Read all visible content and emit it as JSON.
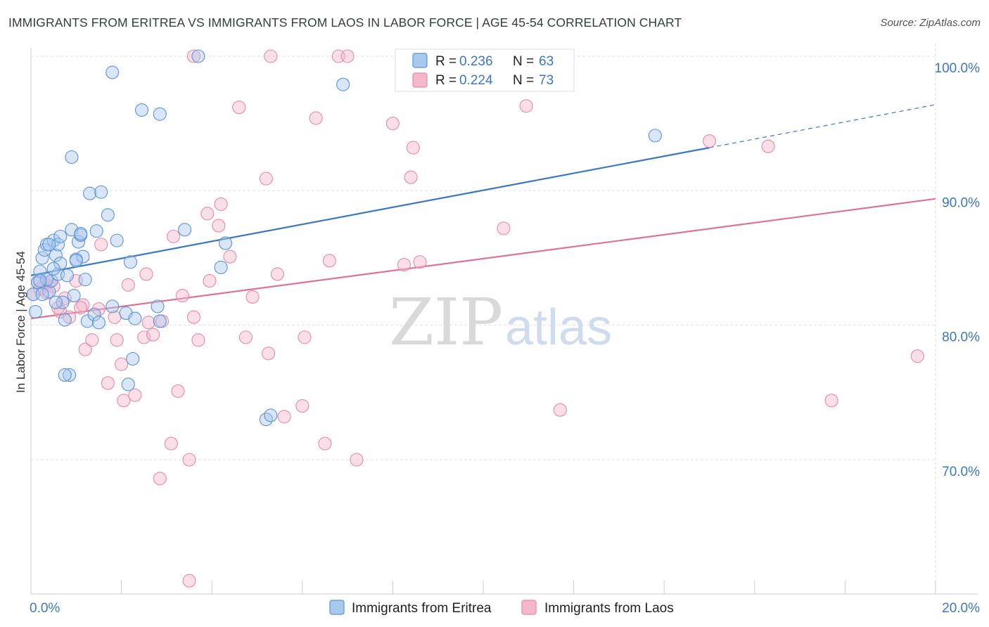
{
  "title": "IMMIGRANTS FROM ERITREA VS IMMIGRANTS FROM LAOS IN LABOR FORCE | AGE 45-54 CORRELATION CHART",
  "source": "Source: ZipAtlas.com",
  "watermark": {
    "zip": "ZIP",
    "atlas": "atlas"
  },
  "colors": {
    "eritrea_fill": "#a8c8f0",
    "eritrea_stroke": "#5b93d8",
    "eritrea_line": "#3b78c4",
    "laos_fill": "#f5b8cb",
    "laos_stroke": "#e88aa8",
    "laos_line": "#e0729a",
    "grid": "#e2e2e2",
    "axis_text": "#3b78c4"
  },
  "legend_top": [
    {
      "r_label": "R = ",
      "r_value": "0.236",
      "n_label": "N = ",
      "n_value": "63",
      "series": "eritrea"
    },
    {
      "r_label": "R = ",
      "r_value": "0.224",
      "n_label": "N = ",
      "n_value": "73",
      "series": "laos"
    }
  ],
  "chart_data": {
    "type": "scatter",
    "title": "IMMIGRANTS FROM ERITREA VS IMMIGRANTS FROM LAOS IN LABOR FORCE | AGE 45-54 CORRELATION CHART",
    "xlabel": "",
    "ylabel": "In Labor Force | Age 45-54",
    "xlim": [
      0,
      20
    ],
    "ylim": [
      60,
      102
    ],
    "x_tick_labels": [
      {
        "value": 0,
        "label": "0.0%"
      },
      {
        "value": 20,
        "label": "20.0%"
      }
    ],
    "y_tick_labels": [
      {
        "value": 100,
        "label": "100.0%"
      },
      {
        "value": 90,
        "label": "90.0%"
      },
      {
        "value": 80,
        "label": "80.0%"
      },
      {
        "value": 70,
        "label": "70.0%"
      }
    ],
    "x_minor_ticks": [
      0,
      2,
      4,
      6,
      8,
      10,
      12,
      14,
      16,
      18,
      20
    ],
    "grid": true,
    "legend_position": "bottom-center",
    "series": [
      {
        "name": "Immigrants from Eritrea",
        "key": "eritrea",
        "r": 0.236,
        "n": 63,
        "trend": {
          "x0": 0,
          "y0": 83.7,
          "x1": 15,
          "y1": 93.2,
          "dash_to_x": 20,
          "dash_to_y": 96.4
        },
        "points": [
          [
            0.05,
            82.3
          ],
          [
            0.1,
            81.0
          ],
          [
            0.15,
            83.2
          ],
          [
            0.2,
            84.0
          ],
          [
            0.25,
            85.0
          ],
          [
            0.3,
            85.6
          ],
          [
            0.35,
            86.0
          ],
          [
            0.4,
            82.5
          ],
          [
            0.45,
            83.3
          ],
          [
            0.5,
            86.3
          ],
          [
            0.55,
            85.2
          ],
          [
            0.6,
            83.8
          ],
          [
            0.65,
            84.6
          ],
          [
            0.7,
            81.7
          ],
          [
            0.75,
            80.4
          ],
          [
            0.8,
            83.7
          ],
          [
            0.85,
            76.3
          ],
          [
            0.9,
            87.1
          ],
          [
            0.95,
            82.2
          ],
          [
            1.0,
            84.9
          ],
          [
            1.05,
            86.2
          ],
          [
            1.1,
            86.7
          ],
          [
            1.15,
            85.1
          ],
          [
            1.2,
            83.4
          ],
          [
            1.25,
            80.3
          ],
          [
            1.3,
            89.8
          ],
          [
            1.4,
            80.8
          ],
          [
            1.45,
            87.0
          ],
          [
            1.5,
            80.2
          ],
          [
            1.55,
            89.9
          ],
          [
            1.7,
            88.2
          ],
          [
            1.8,
            81.4
          ],
          [
            1.9,
            86.3
          ],
          [
            2.1,
            80.9
          ],
          [
            2.15,
            75.6
          ],
          [
            2.2,
            84.7
          ],
          [
            2.25,
            77.5
          ],
          [
            2.3,
            80.5
          ],
          [
            2.45,
            96.0
          ],
          [
            2.8,
            81.4
          ],
          [
            2.85,
            80.3
          ],
          [
            3.4,
            87.1
          ],
          [
            3.7,
            100.0
          ],
          [
            4.3,
            86.1
          ],
          [
            4.2,
            84.3
          ],
          [
            5.2,
            73.0
          ],
          [
            5.3,
            73.3
          ],
          [
            1.8,
            98.8
          ],
          [
            0.9,
            92.5
          ],
          [
            2.85,
            95.7
          ],
          [
            6.9,
            97.9
          ],
          [
            13.8,
            94.1
          ],
          [
            0.6,
            86.0
          ],
          [
            0.65,
            86.6
          ],
          [
            0.35,
            83.4
          ],
          [
            0.2,
            83.3
          ],
          [
            0.25,
            82.3
          ],
          [
            0.5,
            84.2
          ],
          [
            0.75,
            76.3
          ],
          [
            1.1,
            86.8
          ],
          [
            0.4,
            86.0
          ],
          [
            0.55,
            81.7
          ],
          [
            1.0,
            84.8
          ]
        ]
      },
      {
        "name": "Immigrants from Laos",
        "key": "laos",
        "r": 0.224,
        "n": 73,
        "trend": {
          "x0": 0,
          "y0": 80.5,
          "x1": 20,
          "y1": 89.4
        },
        "points": [
          [
            0.05,
            82.3
          ],
          [
            0.2,
            82.7
          ],
          [
            0.3,
            83.1
          ],
          [
            0.4,
            83.2
          ],
          [
            0.5,
            82.9
          ],
          [
            0.65,
            81.0
          ],
          [
            0.75,
            82.0
          ],
          [
            0.85,
            80.6
          ],
          [
            1.0,
            83.3
          ],
          [
            1.15,
            81.5
          ],
          [
            1.2,
            78.2
          ],
          [
            1.35,
            78.9
          ],
          [
            1.5,
            81.2
          ],
          [
            1.55,
            86.0
          ],
          [
            1.7,
            75.7
          ],
          [
            1.85,
            80.6
          ],
          [
            1.9,
            78.9
          ],
          [
            2.0,
            77.1
          ],
          [
            2.05,
            74.4
          ],
          [
            2.15,
            83.0
          ],
          [
            2.3,
            74.8
          ],
          [
            2.5,
            79.1
          ],
          [
            2.55,
            83.8
          ],
          [
            2.6,
            80.2
          ],
          [
            2.7,
            79.3
          ],
          [
            2.9,
            80.3
          ],
          [
            2.85,
            68.6
          ],
          [
            3.1,
            71.2
          ],
          [
            3.15,
            86.6
          ],
          [
            3.25,
            75.1
          ],
          [
            3.35,
            82.2
          ],
          [
            3.5,
            70.0
          ],
          [
            3.6,
            80.6
          ],
          [
            3.7,
            78.9
          ],
          [
            3.9,
            88.3
          ],
          [
            3.95,
            83.3
          ],
          [
            4.15,
            87.4
          ],
          [
            4.2,
            89.0
          ],
          [
            4.4,
            85.1
          ],
          [
            4.6,
            96.2
          ],
          [
            4.75,
            79.1
          ],
          [
            4.9,
            82.1
          ],
          [
            5.2,
            90.9
          ],
          [
            5.25,
            77.9
          ],
          [
            5.45,
            83.8
          ],
          [
            5.6,
            73.2
          ],
          [
            6.0,
            74.0
          ],
          [
            6.05,
            79.1
          ],
          [
            6.3,
            95.4
          ],
          [
            6.5,
            71.2
          ],
          [
            6.6,
            84.8
          ],
          [
            6.8,
            100.0
          ],
          [
            7.0,
            100.0
          ],
          [
            7.2,
            70.0
          ],
          [
            8.0,
            95.0
          ],
          [
            8.25,
            84.5
          ],
          [
            8.4,
            91.0
          ],
          [
            8.45,
            93.2
          ],
          [
            8.6,
            84.7
          ],
          [
            10.45,
            87.2
          ],
          [
            10.95,
            96.3
          ],
          [
            11.7,
            73.7
          ],
          [
            15.0,
            93.7
          ],
          [
            16.3,
            93.3
          ],
          [
            17.7,
            74.4
          ],
          [
            19.6,
            77.7
          ],
          [
            3.6,
            100.0
          ],
          [
            5.3,
            100.0
          ],
          [
            3.5,
            61.0
          ],
          [
            0.35,
            82.4
          ],
          [
            0.6,
            81.3
          ],
          [
            1.1,
            81.3
          ],
          [
            0.15,
            83.2
          ]
        ]
      }
    ]
  }
}
